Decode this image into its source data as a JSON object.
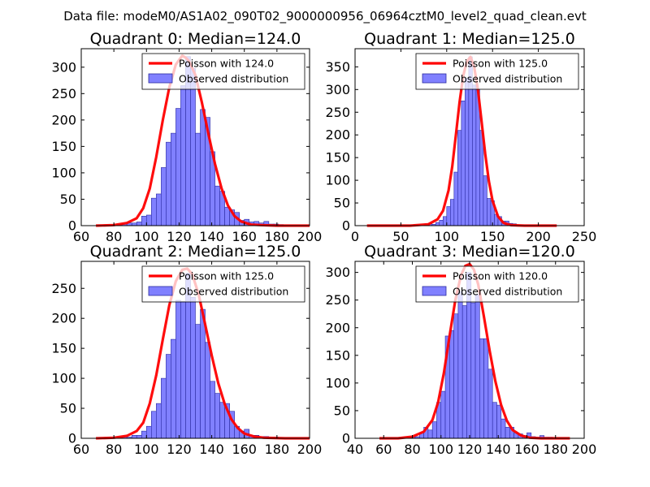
{
  "suptitle": "Data file: modeM0/AS1A02_090T02_9000000956_06964cztM0_level2_quad_clean.evt",
  "colors": {
    "bar_fill": "#8080ff",
    "bar_edge": "#2a2aa0",
    "poisson_line": "#ff0000",
    "axes": "#000000",
    "background": "#ffffff"
  },
  "chart_data": [
    {
      "type": "bar",
      "title": "Quadrant 0: Median=124.0",
      "median": 124.0,
      "xlim": [
        60,
        200
      ],
      "ylim": [
        0,
        335
      ],
      "xticks": [
        60,
        80,
        100,
        120,
        140,
        160,
        180,
        200
      ],
      "yticks": [
        0,
        50,
        100,
        150,
        200,
        250,
        300
      ],
      "bin_width": 3,
      "bins": [
        {
          "x": 82,
          "y": 2
        },
        {
          "x": 85,
          "y": 3
        },
        {
          "x": 88,
          "y": 5
        },
        {
          "x": 91,
          "y": 5
        },
        {
          "x": 94,
          "y": 7
        },
        {
          "x": 97,
          "y": 18
        },
        {
          "x": 100,
          "y": 20
        },
        {
          "x": 103,
          "y": 52
        },
        {
          "x": 106,
          "y": 60
        },
        {
          "x": 109,
          "y": 110
        },
        {
          "x": 112,
          "y": 158
        },
        {
          "x": 115,
          "y": 175
        },
        {
          "x": 118,
          "y": 222
        },
        {
          "x": 121,
          "y": 265
        },
        {
          "x": 124,
          "y": 320
        },
        {
          "x": 127,
          "y": 298
        },
        {
          "x": 130,
          "y": 175
        },
        {
          "x": 133,
          "y": 220
        },
        {
          "x": 136,
          "y": 205
        },
        {
          "x": 139,
          "y": 140
        },
        {
          "x": 142,
          "y": 75
        },
        {
          "x": 145,
          "y": 65
        },
        {
          "x": 148,
          "y": 35
        },
        {
          "x": 151,
          "y": 30
        },
        {
          "x": 154,
          "y": 25
        },
        {
          "x": 157,
          "y": 10
        },
        {
          "x": 160,
          "y": 12
        },
        {
          "x": 163,
          "y": 7
        },
        {
          "x": 166,
          "y": 8
        },
        {
          "x": 169,
          "y": 5
        },
        {
          "x": 172,
          "y": 8
        },
        {
          "x": 175,
          "y": 3
        },
        {
          "x": 178,
          "y": 3
        },
        {
          "x": 181,
          "y": 2
        }
      ],
      "poisson_curve": {
        "x": [
          69,
          80,
          88,
          94,
          98,
          102,
          106,
          110,
          114,
          118,
          122,
          124,
          126,
          130,
          134,
          138,
          142,
          146,
          150,
          154,
          158,
          164,
          170,
          180,
          200
        ],
        "y": [
          0,
          1,
          5,
          14,
          33,
          70,
          130,
          200,
          262,
          305,
          322,
          318,
          312,
          285,
          233,
          173,
          117,
          71,
          38,
          18,
          8,
          2,
          1,
          0,
          0
        ]
      },
      "legend": [
        "Poisson with 124.0",
        "Observed distribution"
      ]
    },
    {
      "type": "bar",
      "title": "Quadrant 1: Median=125.0",
      "median": 125.0,
      "xlim": [
        0,
        250
      ],
      "ylim": [
        0,
        390
      ],
      "xticks": [
        0,
        50,
        100,
        150,
        200,
        250
      ],
      "yticks": [
        0,
        50,
        100,
        150,
        200,
        250,
        300,
        350
      ],
      "bin_width": 4,
      "bins": [
        {
          "x": 76,
          "y": 4
        },
        {
          "x": 80,
          "y": 5
        },
        {
          "x": 84,
          "y": 3
        },
        {
          "x": 88,
          "y": 7
        },
        {
          "x": 92,
          "y": 12
        },
        {
          "x": 96,
          "y": 20
        },
        {
          "x": 100,
          "y": 42
        },
        {
          "x": 104,
          "y": 58
        },
        {
          "x": 108,
          "y": 118
        },
        {
          "x": 112,
          "y": 210
        },
        {
          "x": 116,
          "y": 275
        },
        {
          "x": 120,
          "y": 325
        },
        {
          "x": 124,
          "y": 372
        },
        {
          "x": 128,
          "y": 310
        },
        {
          "x": 132,
          "y": 300
        },
        {
          "x": 136,
          "y": 210
        },
        {
          "x": 140,
          "y": 110
        },
        {
          "x": 144,
          "y": 60
        },
        {
          "x": 148,
          "y": 55
        },
        {
          "x": 152,
          "y": 25
        },
        {
          "x": 156,
          "y": 20
        },
        {
          "x": 160,
          "y": 10
        },
        {
          "x": 164,
          "y": 10
        },
        {
          "x": 168,
          "y": 5
        },
        {
          "x": 172,
          "y": 4
        }
      ],
      "poisson_curve": {
        "x": [
          13,
          60,
          80,
          90,
          96,
          102,
          106,
          110,
          114,
          118,
          122,
          126,
          130,
          134,
          138,
          142,
          146,
          150,
          156,
          162,
          170,
          185,
          220
        ],
        "y": [
          0,
          0,
          3,
          14,
          33,
          78,
          130,
          200,
          272,
          330,
          362,
          372,
          350,
          300,
          230,
          158,
          98,
          55,
          20,
          6,
          1,
          0,
          0
        ]
      },
      "legend": [
        "Poisson with 125.0",
        "Observed distribution"
      ]
    },
    {
      "type": "bar",
      "title": "Quadrant 2: Median=125.0",
      "median": 125.0,
      "xlim": [
        60,
        200
      ],
      "ylim": [
        0,
        295
      ],
      "xticks": [
        60,
        80,
        100,
        120,
        140,
        160,
        180,
        200
      ],
      "yticks": [
        0,
        50,
        100,
        150,
        200,
        250
      ],
      "bin_width": 3,
      "bins": [
        {
          "x": 82,
          "y": 2
        },
        {
          "x": 85,
          "y": 3
        },
        {
          "x": 88,
          "y": 2
        },
        {
          "x": 91,
          "y": 5
        },
        {
          "x": 94,
          "y": 5
        },
        {
          "x": 97,
          "y": 12
        },
        {
          "x": 100,
          "y": 20
        },
        {
          "x": 103,
          "y": 45
        },
        {
          "x": 106,
          "y": 58
        },
        {
          "x": 109,
          "y": 100
        },
        {
          "x": 112,
          "y": 140
        },
        {
          "x": 115,
          "y": 165
        },
        {
          "x": 118,
          "y": 230
        },
        {
          "x": 121,
          "y": 228
        },
        {
          "x": 124,
          "y": 275
        },
        {
          "x": 127,
          "y": 235
        },
        {
          "x": 130,
          "y": 190
        },
        {
          "x": 133,
          "y": 215
        },
        {
          "x": 136,
          "y": 160
        },
        {
          "x": 139,
          "y": 95
        },
        {
          "x": 142,
          "y": 75
        },
        {
          "x": 145,
          "y": 60
        },
        {
          "x": 148,
          "y": 58
        },
        {
          "x": 151,
          "y": 45
        },
        {
          "x": 154,
          "y": 20
        },
        {
          "x": 157,
          "y": 12
        },
        {
          "x": 160,
          "y": 15
        },
        {
          "x": 163,
          "y": 5
        },
        {
          "x": 166,
          "y": 5
        },
        {
          "x": 169,
          "y": 3
        },
        {
          "x": 172,
          "y": 3
        },
        {
          "x": 175,
          "y": 2
        },
        {
          "x": 178,
          "y": 2
        }
      ],
      "poisson_curve": {
        "x": [
          69,
          80,
          88,
          94,
          98,
          102,
          106,
          110,
          114,
          118,
          122,
          125,
          128,
          132,
          136,
          140,
          144,
          148,
          152,
          156,
          160,
          166,
          172,
          185,
          200
        ],
        "y": [
          0,
          1,
          4,
          12,
          26,
          58,
          105,
          165,
          222,
          262,
          281,
          283,
          274,
          240,
          190,
          138,
          92,
          57,
          32,
          17,
          8,
          3,
          1,
          0,
          0
        ]
      },
      "legend": [
        "Poisson with 125.0",
        "Observed distribution"
      ]
    },
    {
      "type": "bar",
      "title": "Quadrant 3: Median=120.0",
      "median": 120.0,
      "xlim": [
        40,
        200
      ],
      "ylim": [
        0,
        320
      ],
      "xticks": [
        40,
        60,
        80,
        100,
        120,
        140,
        160,
        180,
        200
      ],
      "yticks": [
        0,
        50,
        100,
        150,
        200,
        250,
        300
      ],
      "bin_width": 3,
      "bins": [
        {
          "x": 70,
          "y": 1
        },
        {
          "x": 73,
          "y": 2
        },
        {
          "x": 76,
          "y": 2
        },
        {
          "x": 79,
          "y": 3
        },
        {
          "x": 82,
          "y": 3
        },
        {
          "x": 85,
          "y": 10
        },
        {
          "x": 88,
          "y": 20
        },
        {
          "x": 91,
          "y": 15
        },
        {
          "x": 94,
          "y": 30
        },
        {
          "x": 97,
          "y": 65
        },
        {
          "x": 100,
          "y": 85
        },
        {
          "x": 103,
          "y": 185
        },
        {
          "x": 106,
          "y": 195
        },
        {
          "x": 109,
          "y": 225
        },
        {
          "x": 112,
          "y": 265
        },
        {
          "x": 115,
          "y": 240
        },
        {
          "x": 118,
          "y": 300
        },
        {
          "x": 121,
          "y": 245
        },
        {
          "x": 124,
          "y": 260
        },
        {
          "x": 127,
          "y": 180
        },
        {
          "x": 130,
          "y": 180
        },
        {
          "x": 133,
          "y": 125
        },
        {
          "x": 136,
          "y": 65
        },
        {
          "x": 139,
          "y": 60
        },
        {
          "x": 142,
          "y": 35
        },
        {
          "x": 145,
          "y": 20
        },
        {
          "x": 148,
          "y": 20
        },
        {
          "x": 151,
          "y": 10
        },
        {
          "x": 154,
          "y": 8
        },
        {
          "x": 157,
          "y": 5
        },
        {
          "x": 160,
          "y": 10
        },
        {
          "x": 163,
          "y": 3
        },
        {
          "x": 166,
          "y": 2
        },
        {
          "x": 169,
          "y": 5
        },
        {
          "x": 172,
          "y": 2
        },
        {
          "x": 175,
          "y": 2
        }
      ],
      "poisson_curve": {
        "x": [
          57,
          70,
          80,
          88,
          94,
          98,
          102,
          106,
          110,
          114,
          117,
          120,
          123,
          126,
          130,
          134,
          138,
          142,
          146,
          150,
          156,
          162,
          170,
          180,
          190
        ],
        "y": [
          0,
          0,
          3,
          12,
          33,
          65,
          118,
          185,
          250,
          295,
          312,
          315,
          305,
          278,
          220,
          158,
          103,
          60,
          32,
          15,
          5,
          1,
          0,
          0,
          0
        ]
      },
      "legend": [
        "Poisson with 120.0",
        "Observed distribution"
      ]
    }
  ]
}
